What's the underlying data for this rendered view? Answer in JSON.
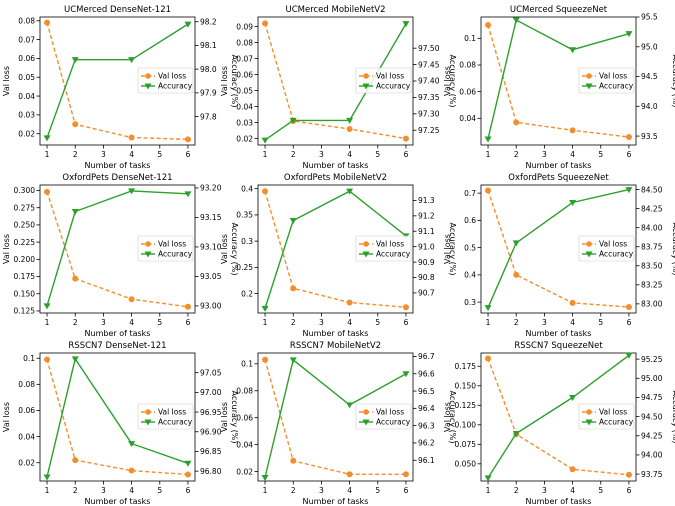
{
  "colors": {
    "val_loss": "#f28e2b",
    "accuracy": "#2ca02c"
  },
  "chart_data": [
    {
      "type": "line",
      "title": "UCMerced DenseNet-121",
      "x": [
        1,
        2,
        4,
        6
      ],
      "xticks": [
        1,
        2,
        3,
        4,
        5,
        6
      ],
      "xlabel": "Number of tasks",
      "ylabel": "Val loss",
      "y2label": "Accuracy (%)",
      "ylim": [
        0.014,
        0.082
      ],
      "yticks": [
        0.02,
        0.03,
        0.04,
        0.05,
        0.06,
        0.07,
        0.08
      ],
      "y2lim": [
        97.68,
        98.22
      ],
      "y2ticks": [
        "97.8",
        "97.9",
        "98.0",
        "98.1",
        "98.2"
      ],
      "legend": "center-right",
      "series": [
        {
          "name": "Val loss",
          "axis": "left",
          "values": [
            0.079,
            0.025,
            0.018,
            0.017
          ]
        },
        {
          "name": "Accuracy",
          "axis": "right",
          "values": [
            97.71,
            98.04,
            98.04,
            98.19
          ]
        }
      ]
    },
    {
      "type": "line",
      "title": "UCMerced MobileNetV2",
      "x": [
        1,
        2,
        4,
        6
      ],
      "xticks": [
        1,
        2,
        3,
        4,
        5,
        6
      ],
      "xlabel": "Number of tasks",
      "ylabel": "Val loss",
      "y2label": "Accuracy (%)",
      "ylim": [
        0.016,
        0.096
      ],
      "yticks": [
        0.02,
        0.03,
        0.04,
        0.05,
        0.06,
        0.07,
        0.08,
        0.09
      ],
      "y2lim": [
        97.205,
        97.595
      ],
      "y2ticks": [
        "97.25",
        "97.30",
        "97.35",
        "97.40",
        "97.45",
        "97.50"
      ],
      "legend": "center-right",
      "series": [
        {
          "name": "Val loss",
          "axis": "left",
          "values": [
            0.092,
            0.031,
            0.026,
            0.02
          ]
        },
        {
          "name": "Accuracy",
          "axis": "right",
          "values": [
            97.22,
            97.28,
            97.28,
            97.575
          ]
        }
      ]
    },
    {
      "type": "line",
      "title": "UCMerced SqueezeNet",
      "x": [
        1,
        2,
        4,
        6
      ],
      "xticks": [
        1,
        2,
        3,
        4,
        5,
        6
      ],
      "xlabel": "Number of tasks",
      "ylabel": "Val loss",
      "y2label": "Accuracy (%)",
      "ylim": [
        0.02,
        0.116
      ],
      "yticks": [
        0.04,
        0.06,
        0.08,
        0.1
      ],
      "y2lim": [
        93.35,
        95.5
      ],
      "y2ticks": [
        "93.5",
        "94.0",
        "94.5",
        "95.0",
        "95.5"
      ],
      "legend": "center-right",
      "series": [
        {
          "name": "Val loss",
          "axis": "left",
          "values": [
            0.11,
            0.037,
            0.031,
            0.026
          ]
        },
        {
          "name": "Accuracy",
          "axis": "right",
          "values": [
            93.45,
            95.45,
            94.95,
            95.22
          ]
        }
      ]
    },
    {
      "type": "line",
      "title": "OxfordPets DenseNet-121",
      "x": [
        1,
        2,
        4,
        6
      ],
      "xticks": [
        1,
        2,
        3,
        4,
        5,
        6
      ],
      "xlabel": "Number of tasks",
      "ylabel": "Val loss",
      "y2label": "Accuracy (%)",
      "ylim": [
        0.122,
        0.308
      ],
      "yticks": [
        "0.125",
        "0.150",
        "0.175",
        "0.200",
        "0.225",
        "0.250",
        "0.275",
        "0.300"
      ],
      "y2lim": [
        92.988,
        93.205
      ],
      "y2ticks": [
        "93.00",
        "93.05",
        "93.10",
        "93.15",
        "93.20"
      ],
      "legend": "center-right",
      "series": [
        {
          "name": "Val loss",
          "axis": "left",
          "values": [
            0.298,
            0.172,
            0.142,
            0.131
          ]
        },
        {
          "name": "Accuracy",
          "axis": "right",
          "values": [
            93.0,
            93.16,
            93.195,
            93.19
          ]
        }
      ]
    },
    {
      "type": "line",
      "title": "OxfordPets MobileNetV2",
      "x": [
        1,
        2,
        4,
        6
      ],
      "xticks": [
        1,
        2,
        3,
        4,
        5,
        6
      ],
      "xlabel": "Number of tasks",
      "ylabel": "Val loss",
      "y2label": "Accuracy (%)",
      "ylim": [
        0.163,
        0.407
      ],
      "yticks": [
        0.2,
        0.25,
        0.3,
        0.35,
        0.4
      ],
      "y2lim": [
        90.57,
        91.4
      ],
      "y2ticks": [
        "90.7",
        "90.8",
        "90.9",
        "91.0",
        "91.1",
        "91.2",
        "91.3"
      ],
      "legend": "center-right",
      "series": [
        {
          "name": "Val loss",
          "axis": "left",
          "values": [
            0.395,
            0.21,
            0.183,
            0.174
          ]
        },
        {
          "name": "Accuracy",
          "axis": "right",
          "values": [
            90.6,
            91.17,
            91.36,
            91.07
          ]
        }
      ]
    },
    {
      "type": "line",
      "title": "OxfordPets SqueezeNet",
      "x": [
        1,
        2,
        4,
        6
      ],
      "xticks": [
        1,
        2,
        3,
        4,
        5,
        6
      ],
      "xlabel": "Number of tasks",
      "ylabel": "Val loss",
      "y2label": "Accuracy (%)",
      "ylim": [
        0.26,
        0.73
      ],
      "yticks": [
        0.3,
        0.4,
        0.5,
        0.6,
        0.7
      ],
      "y2lim": [
        82.88,
        84.56
      ],
      "y2ticks": [
        "83.00",
        "83.25",
        "83.50",
        "83.75",
        "84.00",
        "84.25",
        "84.50"
      ],
      "legend": "center-right",
      "series": [
        {
          "name": "Val loss",
          "axis": "left",
          "values": [
            0.71,
            0.4,
            0.297,
            0.282
          ]
        },
        {
          "name": "Accuracy",
          "axis": "right",
          "values": [
            82.95,
            83.8,
            84.33,
            84.5
          ]
        }
      ]
    },
    {
      "type": "line",
      "title": "RSSCN7 DenseNet-121",
      "x": [
        1,
        2,
        4,
        6
      ],
      "xticks": [
        1,
        2,
        3,
        4,
        5,
        6
      ],
      "xlabel": "Number of tasks",
      "ylabel": "Val loss",
      "y2label": "Accuracy (%)",
      "ylim": [
        0.006,
        0.104
      ],
      "yticks": [
        0.02,
        0.04,
        0.06,
        0.08,
        0.1
      ],
      "y2lim": [
        96.775,
        97.1
      ],
      "y2ticks": [
        "96.80",
        "96.85",
        "96.90",
        "96.95",
        "97.00",
        "97.05"
      ],
      "legend": "center-right",
      "series": [
        {
          "name": "Val loss",
          "axis": "left",
          "values": [
            0.099,
            0.022,
            0.014,
            0.011
          ]
        },
        {
          "name": "Accuracy",
          "axis": "right",
          "values": [
            96.785,
            97.085,
            96.87,
            96.82
          ]
        }
      ]
    },
    {
      "type": "line",
      "title": "RSSCN7 MobileNetV2",
      "x": [
        1,
        2,
        4,
        6
      ],
      "xticks": [
        1,
        2,
        3,
        4,
        5,
        6
      ],
      "xlabel": "Number of tasks",
      "ylabel": "Val loss",
      "y2label": "Accuracy (%)",
      "ylim": [
        0.013,
        0.108
      ],
      "yticks": [
        0.02,
        0.04,
        0.06,
        0.08,
        0.1
      ],
      "y2lim": [
        95.98,
        96.72
      ],
      "y2ticks": [
        "96.1",
        "96.2",
        "96.3",
        "96.4",
        "96.5",
        "96.6",
        "96.7"
      ],
      "legend": "center-right",
      "series": [
        {
          "name": "Val loss",
          "axis": "left",
          "values": [
            0.103,
            0.028,
            0.018,
            0.018
          ]
        },
        {
          "name": "Accuracy",
          "axis": "right",
          "values": [
            96.0,
            96.68,
            96.42,
            96.6
          ]
        }
      ]
    },
    {
      "type": "line",
      "title": "RSSCN7 SqueezeNet",
      "x": [
        1,
        2,
        4,
        6
      ],
      "xticks": [
        1,
        2,
        3,
        4,
        5,
        6
      ],
      "xlabel": "Number of tasks",
      "ylabel": "Val loss",
      "y2label": "Accuracy (%)",
      "ylim": [
        0.028,
        0.192
      ],
      "yticks": [
        "0.050",
        "0.075",
        "0.100",
        "0.125",
        "0.150",
        "0.175"
      ],
      "y2lim": [
        93.66,
        95.33
      ],
      "y2ticks": [
        "93.75",
        "94.00",
        "94.25",
        "94.50",
        "94.75",
        "95.00",
        "95.25"
      ],
      "legend": "center-right",
      "series": [
        {
          "name": "Val loss",
          "axis": "left",
          "values": [
            0.185,
            0.088,
            0.043,
            0.036
          ]
        },
        {
          "name": "Accuracy",
          "axis": "right",
          "values": [
            93.7,
            94.28,
            94.75,
            95.3
          ]
        }
      ]
    }
  ]
}
